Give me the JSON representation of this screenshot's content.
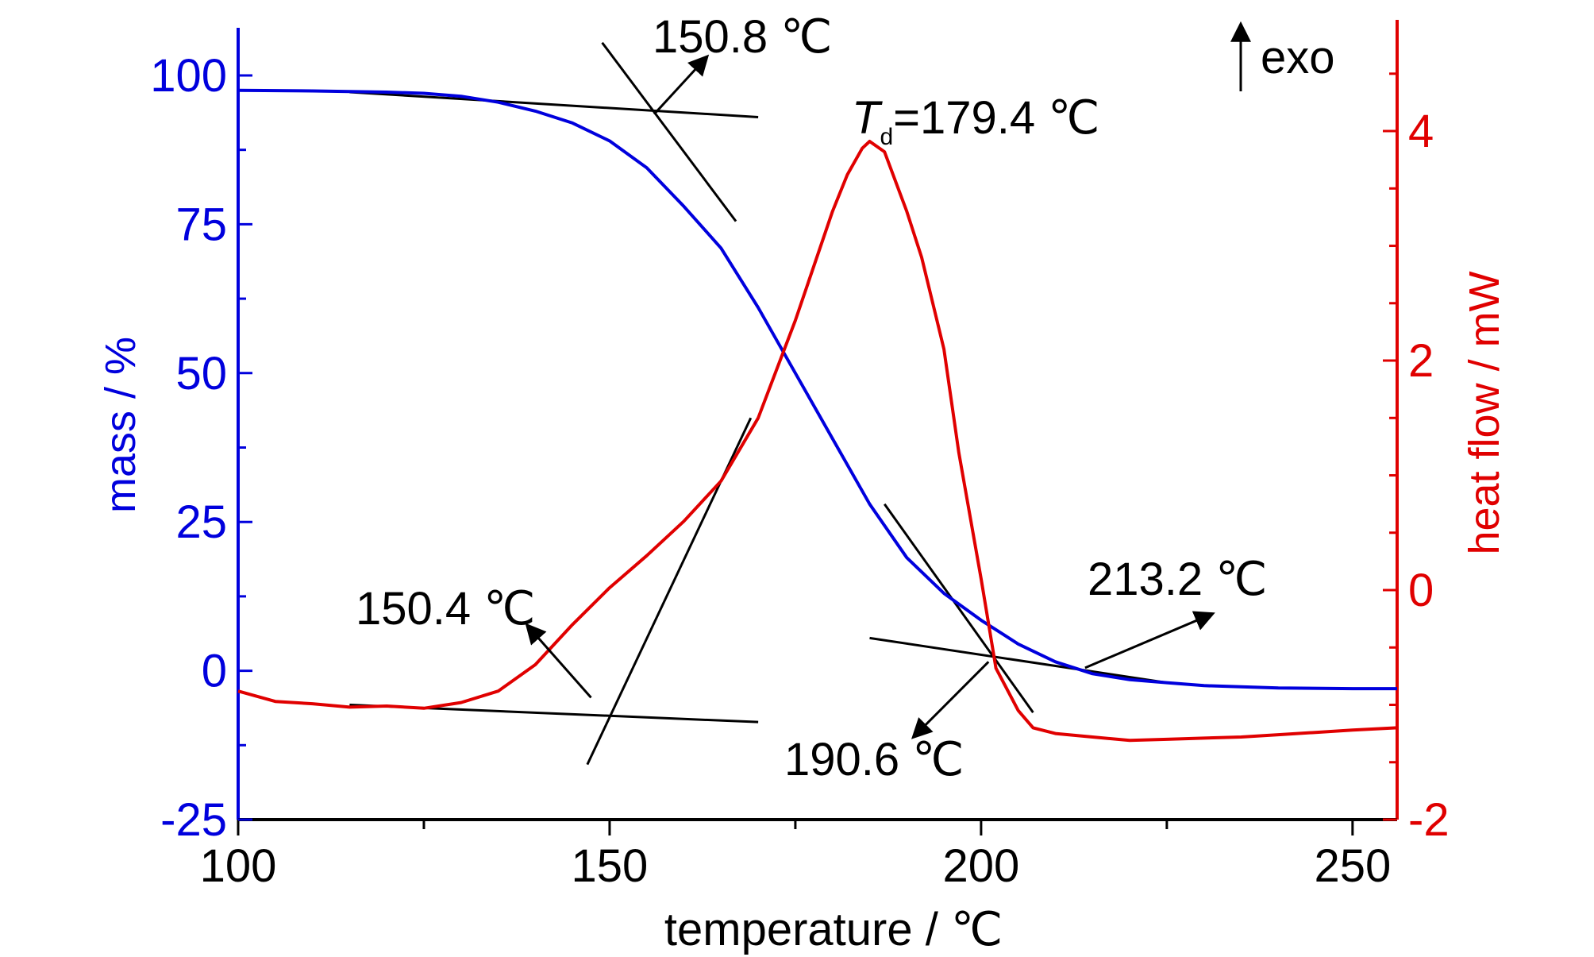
{
  "chart_data": {
    "type": "line",
    "xlabel": "temperature / ℃",
    "x_ticks": [
      "100",
      "150",
      "200",
      "250"
    ],
    "xlim": [
      100,
      256
    ],
    "y_left": {
      "label": "mass / %",
      "ticks": [
        "100",
        "75",
        "50",
        "25",
        "0",
        "-25"
      ],
      "lim": [
        -25,
        108
      ],
      "color": "#0000dd"
    },
    "y_right": {
      "label": "heat flow / mW",
      "ticks": [
        "4",
        "2",
        "0",
        "-2"
      ],
      "lim": [
        -2,
        4.9
      ],
      "color": "#e00000"
    },
    "series": [
      {
        "axis": "left",
        "color": "#0000dd",
        "x": [
          100,
          110,
          120,
          125,
          130,
          135,
          140,
          145,
          150,
          155,
          160,
          165,
          170,
          175,
          180,
          185,
          190,
          195,
          200,
          205,
          210,
          215,
          220,
          225,
          230,
          240,
          250,
          256
        ],
        "y": [
          97.5,
          97.4,
          97.2,
          97.0,
          96.5,
          95.5,
          94.0,
          92.0,
          89.0,
          84.5,
          78.0,
          71.0,
          61.0,
          50.0,
          39.0,
          28.0,
          19.0,
          13.0,
          8.5,
          4.5,
          1.5,
          -0.5,
          -1.5,
          -2.0,
          -2.5,
          -2.9,
          -3.0,
          -3.0
        ]
      },
      {
        "axis": "right",
        "color": "#e00000",
        "x": [
          100,
          105,
          110,
          115,
          120,
          125,
          130,
          135,
          140,
          145,
          150,
          155,
          160,
          165,
          170,
          175,
          180,
          182,
          184,
          185,
          187,
          190,
          192,
          195,
          197,
          200,
          202,
          205,
          207,
          210,
          215,
          220,
          225,
          230,
          235,
          240,
          245,
          250,
          256
        ],
        "y": [
          -0.88,
          -0.97,
          -0.99,
          -1.02,
          -1.01,
          -1.03,
          -0.98,
          -0.88,
          -0.65,
          -0.3,
          0.02,
          0.3,
          0.6,
          0.95,
          1.5,
          2.35,
          3.3,
          3.62,
          3.85,
          3.91,
          3.82,
          3.3,
          2.9,
          2.1,
          1.2,
          0.1,
          -0.68,
          -1.05,
          -1.2,
          -1.25,
          -1.28,
          -1.31,
          -1.3,
          -1.29,
          -1.28,
          -1.26,
          -1.24,
          -1.22,
          -1.2
        ]
      }
    ],
    "tangents": [
      {
        "x": [
          115,
          170
        ],
        "y": [
          97.2,
          93.0
        ],
        "axis": "left"
      },
      {
        "x": [
          149,
          167
        ],
        "y": [
          105.5,
          75.5
        ],
        "axis": "left"
      },
      {
        "x": [
          187,
          207
        ],
        "y": [
          28.0,
          -7.0
        ],
        "axis": "left"
      },
      {
        "x": [
          185,
          225
        ],
        "y": [
          5.5,
          -2.0
        ],
        "axis": "left"
      },
      {
        "x": [
          115,
          170
        ],
        "y": [
          -1.0,
          -1.15
        ],
        "axis": "right"
      },
      {
        "x": [
          147,
          169
        ],
        "y": [
          -1.52,
          1.5
        ],
        "axis": "right"
      }
    ],
    "annotations": [
      {
        "text": "150.8 ℃",
        "arrow_from": [
          156,
          93.5
        ],
        "arrow_to": [
          163,
          103.0
        ]
      },
      {
        "text_italic": "T",
        "text_sub": "d",
        "text": "=179.4 ℃"
      },
      {
        "text": "150.4 ℃",
        "arrow_from": [
          147.5,
          -4.5
        ],
        "arrow_to": [
          139,
          7.5
        ]
      },
      {
        "text": "213.2 ℃",
        "arrow_from": [
          214,
          0.5
        ],
        "arrow_to": [
          231,
          9.5
        ]
      },
      {
        "text": "190.6 ℃",
        "arrow_from": [
          201,
          1.5
        ],
        "arrow_to": [
          191,
          -11.0
        ]
      },
      {
        "text": "exo",
        "arrow": "up"
      }
    ]
  }
}
